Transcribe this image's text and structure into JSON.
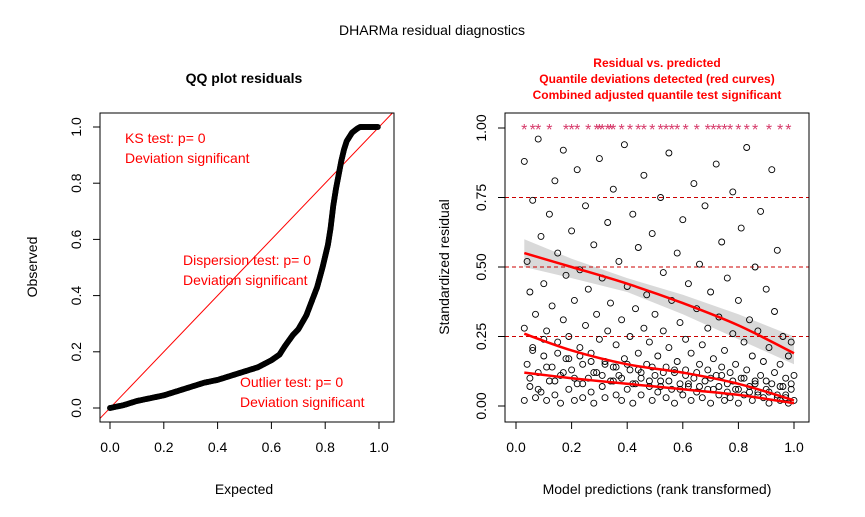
{
  "figure_title": "DHARMa residual diagnostics",
  "chart_data": [
    {
      "type": "scatter",
      "title": "QQ plot residuals",
      "xlabel": "Expected",
      "ylabel": "Observed",
      "xlim": [
        0,
        1
      ],
      "ylim": [
        0,
        1
      ],
      "xticks": [
        "0.0",
        "0.2",
        "0.4",
        "0.6",
        "0.8",
        "1.0"
      ],
      "yticks": [
        "0.0",
        "0.2",
        "0.4",
        "0.6",
        "0.8",
        "1.0"
      ],
      "reference_line": {
        "from": [
          0,
          0
        ],
        "to": [
          1,
          1
        ],
        "color": "#ff0000"
      },
      "point_color": "#000000",
      "qq_curve": [
        [
          0.0,
          0.0
        ],
        [
          0.05,
          0.01
        ],
        [
          0.1,
          0.025
        ],
        [
          0.15,
          0.035
        ],
        [
          0.2,
          0.045
        ],
        [
          0.25,
          0.06
        ],
        [
          0.3,
          0.075
        ],
        [
          0.35,
          0.09
        ],
        [
          0.4,
          0.1
        ],
        [
          0.45,
          0.115
        ],
        [
          0.5,
          0.13
        ],
        [
          0.55,
          0.145
        ],
        [
          0.6,
          0.17
        ],
        [
          0.63,
          0.19
        ],
        [
          0.65,
          0.22
        ],
        [
          0.68,
          0.26
        ],
        [
          0.7,
          0.28
        ],
        [
          0.73,
          0.33
        ],
        [
          0.75,
          0.38
        ],
        [
          0.77,
          0.43
        ],
        [
          0.79,
          0.5
        ],
        [
          0.81,
          0.58
        ],
        [
          0.82,
          0.64
        ],
        [
          0.83,
          0.72
        ],
        [
          0.84,
          0.78
        ],
        [
          0.85,
          0.83
        ],
        [
          0.86,
          0.88
        ],
        [
          0.87,
          0.92
        ],
        [
          0.88,
          0.95
        ],
        [
          0.9,
          0.98
        ],
        [
          0.92,
          0.995
        ],
        [
          0.93,
          1.0
        ],
        [
          0.96,
          1.0
        ],
        [
          1.0,
          1.0
        ]
      ],
      "annotations": {
        "ks": [
          "KS test: p= 0",
          "Deviation  significant"
        ],
        "dispersion": [
          "Dispersion test: p= 0",
          "Deviation  significant"
        ],
        "outlier": [
          "Outlier test: p= 0",
          "Deviation  significant"
        ]
      },
      "annotation_color": "#ff0000"
    },
    {
      "type": "scatter",
      "title_lines": [
        "Residual vs. predicted",
        "Quantile deviations detected (red curves)",
        "Combined adjusted quantile test significant"
      ],
      "title_color": "#ff0000",
      "xlabel": "Model predictions (rank transformed)",
      "ylabel": "Standardized residual",
      "xlim": [
        0,
        1
      ],
      "ylim": [
        0,
        1
      ],
      "xticks": [
        "0.0",
        "0.2",
        "0.4",
        "0.6",
        "0.8",
        "1.0"
      ],
      "yticks": [
        "0.00",
        "0.25",
        "0.50",
        "0.75",
        "1.00"
      ],
      "reference_lines_y": [
        0.25,
        0.5,
        0.75
      ],
      "reference_line_color": "#cc0000",
      "quantile_curves": [
        {
          "x": [
            0.03,
            0.2,
            0.4,
            0.6,
            0.8,
            1.0
          ],
          "y": [
            0.55,
            0.5,
            0.44,
            0.37,
            0.29,
            0.19
          ]
        },
        {
          "x": [
            0.03,
            0.2,
            0.4,
            0.6,
            0.8,
            1.0
          ],
          "y": [
            0.26,
            0.2,
            0.15,
            0.12,
            0.08,
            0.02
          ]
        },
        {
          "x": [
            0.03,
            0.2,
            0.4,
            0.6,
            0.8,
            1.0
          ],
          "y": [
            0.12,
            0.1,
            0.08,
            0.06,
            0.04,
            0.01
          ]
        }
      ],
      "quantile_curve_color": "#ff0000",
      "confidence_band": {
        "x": [
          0.03,
          0.2,
          0.4,
          0.6,
          0.8,
          1.0
        ],
        "upper": [
          0.6,
          0.53,
          0.46,
          0.4,
          0.33,
          0.25
        ],
        "lower": [
          0.5,
          0.46,
          0.41,
          0.33,
          0.24,
          0.15
        ],
        "color": "#d9d9d9"
      },
      "outlier_marker_color": "#d63a6a",
      "outliers_x": [
        0.03,
        0.06,
        0.08,
        0.12,
        0.18,
        0.2,
        0.22,
        0.26,
        0.29,
        0.3,
        0.31,
        0.33,
        0.34,
        0.35,
        0.38,
        0.41,
        0.44,
        0.46,
        0.49,
        0.52,
        0.54,
        0.56,
        0.58,
        0.61,
        0.65,
        0.69,
        0.71,
        0.73,
        0.75,
        0.77,
        0.8,
        0.83,
        0.86,
        0.91,
        0.95,
        0.98
      ],
      "point_color": "#000000",
      "points": [
        [
          0.03,
          0.02
        ],
        [
          0.03,
          0.28
        ],
        [
          0.03,
          0.88
        ],
        [
          0.04,
          0.15
        ],
        [
          0.04,
          0.52
        ],
        [
          0.05,
          0.07
        ],
        [
          0.05,
          0.41
        ],
        [
          0.06,
          0.74
        ],
        [
          0.06,
          0.21
        ],
        [
          0.07,
          0.03
        ],
        [
          0.07,
          0.33
        ],
        [
          0.08,
          0.96
        ],
        [
          0.08,
          0.12
        ],
        [
          0.09,
          0.61
        ],
        [
          0.09,
          0.05
        ],
        [
          0.1,
          0.18
        ],
        [
          0.1,
          0.44
        ],
        [
          0.11,
          0.27
        ],
        [
          0.11,
          0.02
        ],
        [
          0.12,
          0.69
        ],
        [
          0.12,
          0.09
        ],
        [
          0.13,
          0.36
        ],
        [
          0.13,
          0.14
        ],
        [
          0.14,
          0.81
        ],
        [
          0.14,
          0.04
        ],
        [
          0.15,
          0.23
        ],
        [
          0.15,
          0.55
        ],
        [
          0.16,
          0.11
        ],
        [
          0.16,
          0.01
        ],
        [
          0.17,
          0.31
        ],
        [
          0.17,
          0.92
        ],
        [
          0.18,
          0.17
        ],
        [
          0.18,
          0.47
        ],
        [
          0.19,
          0.06
        ],
        [
          0.19,
          0.25
        ],
        [
          0.2,
          0.63
        ],
        [
          0.2,
          0.13
        ],
        [
          0.21,
          0.02
        ],
        [
          0.21,
          0.38
        ],
        [
          0.22,
          0.85
        ],
        [
          0.22,
          0.08
        ],
        [
          0.23,
          0.21
        ],
        [
          0.23,
          0.49
        ],
        [
          0.24,
          0.15
        ],
        [
          0.24,
          0.03
        ],
        [
          0.25,
          0.29
        ],
        [
          0.25,
          0.72
        ],
        [
          0.26,
          0.1
        ],
        [
          0.26,
          0.42
        ],
        [
          0.27,
          0.05
        ],
        [
          0.27,
          0.19
        ],
        [
          0.28,
          0.58
        ],
        [
          0.28,
          0.01
        ],
        [
          0.29,
          0.33
        ],
        [
          0.29,
          0.12
        ],
        [
          0.3,
          0.89
        ],
        [
          0.3,
          0.24
        ],
        [
          0.31,
          0.07
        ],
        [
          0.31,
          0.46
        ],
        [
          0.32,
          0.16
        ],
        [
          0.32,
          0.03
        ],
        [
          0.33,
          0.66
        ],
        [
          0.33,
          0.27
        ],
        [
          0.34,
          0.09
        ],
        [
          0.34,
          0.37
        ],
        [
          0.35,
          0.14
        ],
        [
          0.35,
          0.78
        ],
        [
          0.36,
          0.04
        ],
        [
          0.36,
          0.22
        ],
        [
          0.37,
          0.52
        ],
        [
          0.37,
          0.11
        ],
        [
          0.38,
          0.02
        ],
        [
          0.38,
          0.31
        ],
        [
          0.39,
          0.94
        ],
        [
          0.39,
          0.17
        ],
        [
          0.4,
          0.06
        ],
        [
          0.4,
          0.43
        ],
        [
          0.41,
          0.25
        ],
        [
          0.41,
          0.13
        ],
        [
          0.42,
          0.69
        ],
        [
          0.42,
          0.01
        ],
        [
          0.43,
          0.35
        ],
        [
          0.43,
          0.08
        ],
        [
          0.44,
          0.19
        ],
        [
          0.44,
          0.57
        ],
        [
          0.45,
          0.12
        ],
        [
          0.45,
          0.04
        ],
        [
          0.46,
          0.28
        ],
        [
          0.46,
          0.83
        ],
        [
          0.47,
          0.15
        ],
        [
          0.47,
          0.4
        ],
        [
          0.48,
          0.07
        ],
        [
          0.48,
          0.23
        ],
        [
          0.49,
          0.02
        ],
        [
          0.49,
          0.62
        ],
        [
          0.5,
          0.11
        ],
        [
          0.5,
          0.33
        ],
        [
          0.51,
          0.05
        ],
        [
          0.51,
          0.18
        ],
        [
          0.52,
          0.75
        ],
        [
          0.52,
          0.09
        ],
        [
          0.53,
          0.27
        ],
        [
          0.53,
          0.48
        ],
        [
          0.54,
          0.03
        ],
        [
          0.54,
          0.14
        ],
        [
          0.55,
          0.91
        ],
        [
          0.55,
          0.21
        ],
        [
          0.56,
          0.06
        ],
        [
          0.56,
          0.38
        ],
        [
          0.57,
          0.12
        ],
        [
          0.57,
          0.01
        ],
        [
          0.58,
          0.55
        ],
        [
          0.58,
          0.16
        ],
        [
          0.59,
          0.08
        ],
        [
          0.59,
          0.3
        ],
        [
          0.6,
          0.67
        ],
        [
          0.6,
          0.04
        ],
        [
          0.61,
          0.13
        ],
        [
          0.61,
          0.24
        ],
        [
          0.62,
          0.44
        ],
        [
          0.62,
          0.07
        ],
        [
          0.63,
          0.02
        ],
        [
          0.63,
          0.19
        ],
        [
          0.64,
          0.8
        ],
        [
          0.64,
          0.1
        ],
        [
          0.65,
          0.35
        ],
        [
          0.65,
          0.05
        ],
        [
          0.66,
          0.15
        ],
        [
          0.66,
          0.51
        ],
        [
          0.67,
          0.03
        ],
        [
          0.67,
          0.22
        ],
        [
          0.68,
          0.09
        ],
        [
          0.68,
          0.72
        ],
        [
          0.69,
          0.13
        ],
        [
          0.69,
          0.28
        ],
        [
          0.7,
          0.01
        ],
        [
          0.7,
          0.41
        ],
        [
          0.71,
          0.06
        ],
        [
          0.71,
          0.17
        ],
        [
          0.72,
          0.87
        ],
        [
          0.72,
          0.11
        ],
        [
          0.73,
          0.04
        ],
        [
          0.73,
          0.32
        ],
        [
          0.74,
          0.14
        ],
        [
          0.74,
          0.59
        ],
        [
          0.75,
          0.02
        ],
        [
          0.75,
          0.2
        ],
        [
          0.76,
          0.08
        ],
        [
          0.76,
          0.46
        ],
        [
          0.77,
          0.12
        ],
        [
          0.77,
          0.03
        ],
        [
          0.78,
          0.26
        ],
        [
          0.78,
          0.77
        ],
        [
          0.79,
          0.06
        ],
        [
          0.79,
          0.15
        ],
        [
          0.8,
          0.38
        ],
        [
          0.8,
          0.01
        ],
        [
          0.81,
          0.1
        ],
        [
          0.81,
          0.64
        ],
        [
          0.82,
          0.04
        ],
        [
          0.82,
          0.23
        ],
        [
          0.83,
          0.13
        ],
        [
          0.83,
          0.93
        ],
        [
          0.84,
          0.07
        ],
        [
          0.84,
          0.31
        ],
        [
          0.85,
          0.02
        ],
        [
          0.85,
          0.18
        ],
        [
          0.86,
          0.5
        ],
        [
          0.86,
          0.09
        ],
        [
          0.87,
          0.05
        ],
        [
          0.87,
          0.27
        ],
        [
          0.88,
          0.7
        ],
        [
          0.88,
          0.11
        ],
        [
          0.89,
          0.03
        ],
        [
          0.89,
          0.16
        ],
        [
          0.9,
          0.42
        ],
        [
          0.9,
          0.06
        ],
        [
          0.91,
          0.01
        ],
        [
          0.91,
          0.21
        ],
        [
          0.92,
          0.85
        ],
        [
          0.92,
          0.08
        ],
        [
          0.93,
          0.12
        ],
        [
          0.93,
          0.34
        ],
        [
          0.94,
          0.04
        ],
        [
          0.94,
          0.56
        ],
        [
          0.95,
          0.15
        ],
        [
          0.95,
          0.02
        ],
        [
          0.96,
          0.25
        ],
        [
          0.96,
          0.07
        ],
        [
          0.97,
          0.1
        ],
        [
          0.97,
          0.03
        ],
        [
          0.98,
          0.18
        ],
        [
          0.98,
          0.01
        ],
        [
          0.99,
          0.06
        ],
        [
          0.99,
          0.23
        ],
        [
          1.0,
          0.02
        ],
        [
          1.0,
          0.11
        ],
        [
          0.05,
          0.1
        ],
        [
          0.08,
          0.06
        ],
        [
          0.11,
          0.14
        ],
        [
          0.14,
          0.09
        ],
        [
          0.17,
          0.12
        ],
        [
          0.21,
          0.1
        ],
        [
          0.24,
          0.08
        ],
        [
          0.28,
          0.12
        ],
        [
          0.31,
          0.11
        ],
        [
          0.35,
          0.09
        ],
        [
          0.38,
          0.1
        ],
        [
          0.42,
          0.08
        ],
        [
          0.45,
          0.1
        ],
        [
          0.48,
          0.09
        ],
        [
          0.52,
          0.07
        ],
        [
          0.55,
          0.09
        ],
        [
          0.59,
          0.06
        ],
        [
          0.62,
          0.08
        ],
        [
          0.66,
          0.07
        ],
        [
          0.69,
          0.06
        ],
        [
          0.73,
          0.07
        ],
        [
          0.76,
          0.05
        ],
        [
          0.8,
          0.06
        ],
        [
          0.84,
          0.05
        ],
        [
          0.87,
          0.04
        ],
        [
          0.91,
          0.05
        ],
        [
          0.94,
          0.03
        ],
        [
          0.97,
          0.04
        ],
        [
          0.06,
          0.2
        ],
        [
          0.1,
          0.24
        ],
        [
          0.15,
          0.19
        ],
        [
          0.19,
          0.17
        ],
        [
          0.23,
          0.18
        ],
        [
          0.27,
          0.16
        ],
        [
          0.32,
          0.15
        ],
        [
          0.36,
          0.14
        ],
        [
          0.4,
          0.15
        ],
        [
          0.44,
          0.13
        ],
        [
          0.49,
          0.14
        ],
        [
          0.53,
          0.12
        ],
        [
          0.57,
          0.13
        ],
        [
          0.61,
          0.11
        ],
        [
          0.65,
          0.12
        ],
        [
          0.7,
          0.1
        ],
        [
          0.74,
          0.11
        ],
        [
          0.78,
          0.09
        ],
        [
          0.82,
          0.1
        ],
        [
          0.86,
          0.08
        ],
        [
          0.9,
          0.09
        ],
        [
          0.95,
          0.07
        ],
        [
          0.99,
          0.08
        ]
      ]
    }
  ]
}
